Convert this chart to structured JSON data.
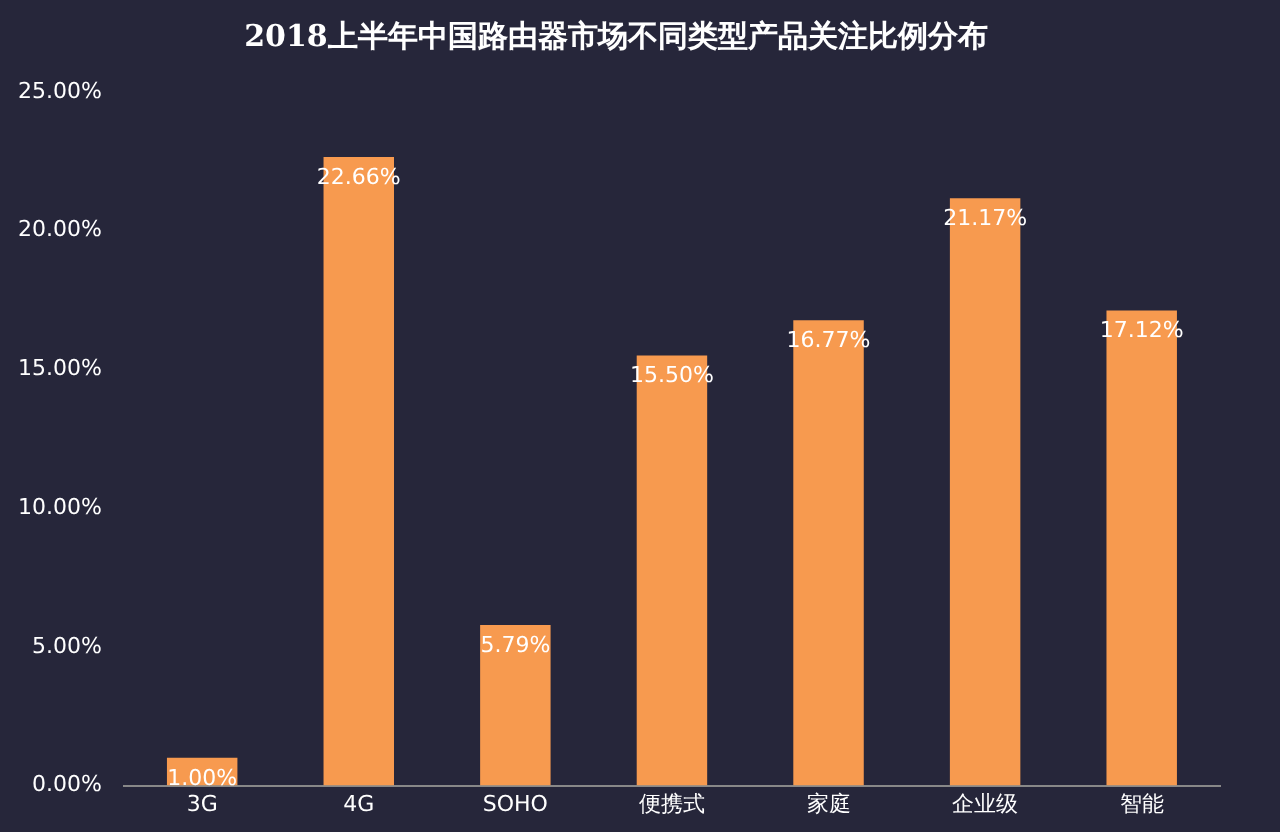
{
  "chart_data": {
    "type": "bar",
    "title": "2018上半年中国路由器市场不同类型产品关注比例分布",
    "categories": [
      "3G",
      "4G",
      "SOHO",
      "便携式",
      "家庭",
      "企业级",
      "智能"
    ],
    "values": [
      1.0,
      22.66,
      5.79,
      15.5,
      16.77,
      21.17,
      17.12
    ],
    "value_labels": [
      "1.00%",
      "22.66%",
      "5.79%",
      "15.50%",
      "16.77%",
      "21.17%",
      "17.12%"
    ],
    "color": "#f79a4f",
    "ylim": [
      0,
      25
    ],
    "yticks": [
      {
        "value": 0,
        "label": "0.00%"
      },
      {
        "value": 5,
        "label": "5.00%"
      },
      {
        "value": 10,
        "label": "10.00%"
      },
      {
        "value": 15,
        "label": "15.00%"
      },
      {
        "value": 20,
        "label": "20.00%"
      },
      {
        "value": 25,
        "label": "25.00%"
      }
    ],
    "grid": false,
    "legend": false
  }
}
